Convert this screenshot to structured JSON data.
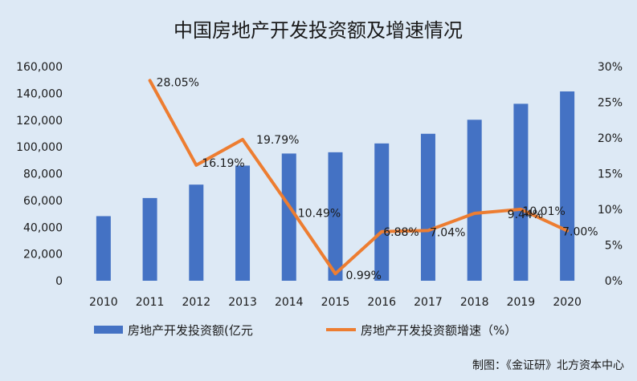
{
  "chart_data": {
    "type": "bar+line",
    "title": "中国房地产开发投资额及增速情况",
    "categories": [
      "2010",
      "2011",
      "2012",
      "2013",
      "2014",
      "2015",
      "2016",
      "2017",
      "2018",
      "2019",
      "2020"
    ],
    "series": [
      {
        "name": "房地产开发投资额(亿元",
        "type": "bar",
        "axis": "left",
        "values": [
          48259,
          61796,
          71804,
          86013,
          95035,
          95979,
          102581,
          109799,
          120264,
          132194,
          141443
        ]
      },
      {
        "name": "房地产开发投资额增速（%）",
        "type": "line",
        "axis": "right",
        "values": [
          null,
          28.05,
          16.19,
          19.79,
          10.49,
          0.99,
          6.88,
          7.04,
          9.44,
          10.01,
          7.0
        ],
        "data_labels": [
          null,
          "28.05%",
          "16.19%",
          "19.79%",
          "10.49%",
          "0.99%",
          "6.88%",
          "7.04%",
          "9.44%",
          "10.01%",
          "7.00%"
        ]
      }
    ],
    "left_axis": {
      "ylim": [
        0,
        160000
      ],
      "ticks": [
        0,
        20000,
        40000,
        60000,
        80000,
        100000,
        120000,
        140000,
        160000
      ],
      "tick_labels": [
        "0",
        "20,000",
        "40,000",
        "60,000",
        "80,000",
        "100,000",
        "120,000",
        "140,000",
        "160,000"
      ]
    },
    "right_axis": {
      "ylim": [
        0,
        30
      ],
      "ticks": [
        0,
        5,
        10,
        15,
        20,
        25,
        30
      ],
      "tick_labels": [
        "0%",
        "5%",
        "10%",
        "15%",
        "20%",
        "25%",
        "30%"
      ]
    },
    "grid": false,
    "legend_position": "bottom"
  },
  "source": "制图：《金证研》北方资本中心",
  "colors": {
    "bar": "#4472c4",
    "line": "#ed7d31",
    "background": "#dde9f5"
  }
}
